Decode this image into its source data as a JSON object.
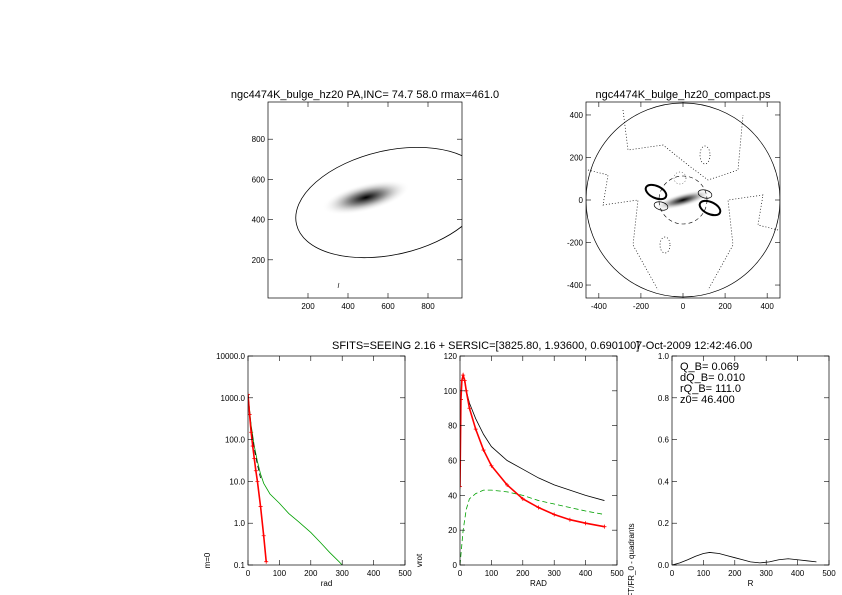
{
  "header": {
    "left": "SFITS=SEEING 2.16 + SERSIC=[3825.80, 1.93600, 0.690100]",
    "right": "7-Oct-2009 12:42:46.00"
  },
  "chart_data": [
    {
      "type": "image",
      "title": "ngc4474K_bulge_hz20 PA,INC= 74.7 58.0 rmax=461.0",
      "xlim": [
        0,
        970
      ],
      "ylim": [
        10,
        985
      ],
      "xticks": [
        200,
        400,
        600,
        800
      ],
      "yticks": [
        200,
        400,
        600,
        800
      ]
    },
    {
      "type": "image",
      "title": "ngc4474K_bulge_hz20_compact.ps",
      "xlim": [
        -461,
        461
      ],
      "ylim": [
        -461,
        461
      ],
      "xticks": [
        -400,
        -200,
        0,
        200,
        400
      ],
      "yticks": [
        -400,
        -200,
        0,
        200,
        400
      ]
    },
    {
      "type": "line",
      "xlabel": "rad",
      "ylabel": "m=0",
      "log_y": true,
      "xlim": [
        0,
        500
      ],
      "ylim": [
        0.1,
        10000
      ],
      "xticks": [
        0,
        100,
        200,
        300,
        400,
        500
      ],
      "yticks": [
        0.1,
        {
          "value": 1,
          "label": "1.0"
        },
        {
          "value": 10,
          "label": "10.0"
        },
        {
          "value": 100,
          "label": "100.0"
        },
        {
          "value": 1000,
          "label": "1000.0"
        },
        {
          "value": 10000,
          "label": "10000.0"
        }
      ],
      "series": [
        {
          "color": "#00a000",
          "x": [
            0,
            10,
            20,
            30,
            40,
            50,
            70,
            100,
            130,
            160,
            200,
            230,
            260,
            290,
            300
          ],
          "values": [
            1200,
            220,
            70,
            30,
            15,
            9,
            5,
            3,
            1.7,
            1.1,
            0.6,
            0.35,
            0.2,
            0.12,
            0.1
          ]
        },
        {
          "color": "#000000",
          "dashed": true,
          "x": [
            0,
            10,
            20,
            30,
            40
          ],
          "values": [
            1200,
            200,
            60,
            25,
            12
          ]
        },
        {
          "color": "#ff0000",
          "markers": true,
          "x": [
            0,
            5,
            10,
            15,
            20,
            25,
            30,
            40,
            50,
            58
          ],
          "values": [
            1200,
            400,
            150,
            70,
            35,
            18,
            10,
            2.5,
            0.5,
            0.12
          ]
        }
      ]
    },
    {
      "type": "line",
      "xlabel": "RAD",
      "ylabel": "vrot",
      "xlim": [
        0,
        500
      ],
      "ylim": [
        0,
        120
      ],
      "xticks": [
        0,
        100,
        200,
        300,
        400,
        500
      ],
      "yticks": [
        0,
        20,
        40,
        60,
        80,
        100,
        120
      ],
      "series": [
        {
          "color": "#000000",
          "x": [
            0,
            3,
            6,
            10,
            15,
            20,
            30,
            50,
            75,
            100,
            150,
            200,
            250,
            300,
            350,
            400,
            460
          ],
          "values": [
            60,
            95,
            106,
            108,
            105,
            100,
            93,
            84,
            75,
            68,
            60,
            55,
            50,
            46,
            43,
            40,
            37
          ]
        },
        {
          "color": "#00a000",
          "dashed": true,
          "x": [
            0,
            10,
            20,
            30,
            50,
            75,
            100,
            150,
            200,
            250,
            300,
            350,
            400,
            460
          ],
          "values": [
            0,
            20,
            32,
            38,
            41,
            43,
            43,
            42,
            40,
            37,
            35,
            33,
            31,
            29
          ]
        },
        {
          "color": "#ff0000",
          "markers": true,
          "x": [
            0,
            3,
            6,
            10,
            15,
            20,
            30,
            50,
            75,
            100,
            150,
            200,
            250,
            300,
            350,
            400,
            460
          ],
          "values": [
            45,
            95,
            106,
            109,
            106,
            100,
            90,
            78,
            66,
            57,
            46,
            38,
            33,
            29,
            26,
            24,
            22
          ]
        }
      ]
    },
    {
      "type": "line",
      "xlabel": "R",
      "ylabel": "FT/FR_0 - quadrants",
      "annotations": [
        "Q_B= 0.069",
        "dQ_B= 0.010",
        "rQ_B= 111.0",
        "z0= 46.400"
      ],
      "xlim": [
        0,
        500
      ],
      "ylim": [
        0,
        1
      ],
      "xticks": [
        0,
        100,
        200,
        300,
        400,
        500
      ],
      "yticks": [
        {
          "value": 0,
          "label": "0.0"
        },
        0.2,
        0.4,
        0.6,
        0.8,
        {
          "value": 1,
          "label": "1.0"
        }
      ],
      "series": [
        {
          "color": "#000000",
          "x": [
            0,
            25,
            50,
            75,
            100,
            120,
            150,
            175,
            200,
            225,
            250,
            280,
            310,
            340,
            370,
            400,
            430,
            460
          ],
          "values": [
            0,
            0.01,
            0.025,
            0.042,
            0.055,
            0.06,
            0.055,
            0.045,
            0.035,
            0.025,
            0.015,
            0.01,
            0.015,
            0.025,
            0.03,
            0.025,
            0.02,
            0.015
          ]
        }
      ]
    }
  ]
}
